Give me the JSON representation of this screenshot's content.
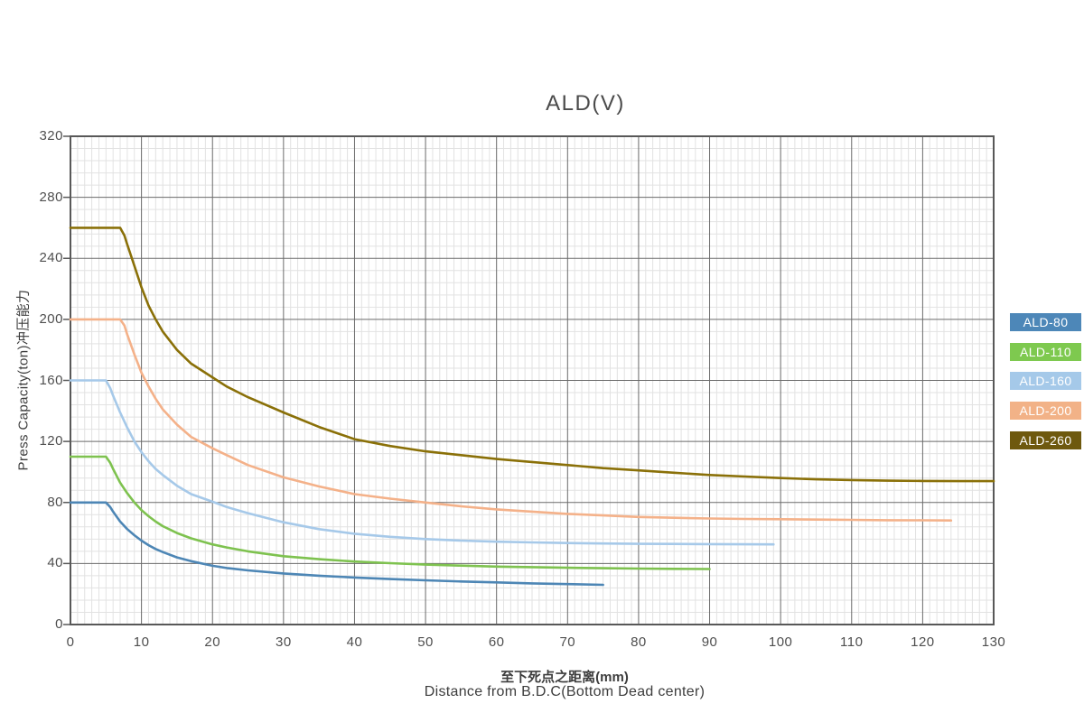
{
  "title": "ALD(V)",
  "axes": {
    "y_title": "Press Capacity(ton)冲压能力",
    "x_title_zh": "至下死点之距离(mm)",
    "x_title_en": "Distance from B.D.C(Bottom Dead center)",
    "x_ticks": [
      "0",
      "10",
      "20",
      "30",
      "40",
      "50",
      "60",
      "70",
      "80",
      "90",
      "100",
      "110",
      "120",
      "130"
    ],
    "y_ticks": [
      "0",
      "40",
      "80",
      "120",
      "160",
      "200",
      "240",
      "280",
      "320"
    ]
  },
  "grid_colors": {
    "minor": "#e2e2e2",
    "major": "#6a6a6a",
    "border": "#585858"
  },
  "chart_data": {
    "type": "line",
    "title": "ALD(V)",
    "xlabel": "至下死点之距离(mm) / Distance from B.D.C(Bottom Dead center)",
    "ylabel": "Press Capacity(ton)冲压能力",
    "xlim": [
      0,
      130
    ],
    "ylim": [
      0,
      320
    ],
    "x_tick_step": 10,
    "y_tick_step": 40,
    "x_minor_step": 1,
    "y_minor_step": 8,
    "grid": "major+minor",
    "legend_position": "right-outside",
    "series": [
      {
        "name": "ALD-80",
        "color": "#4d86b5",
        "chip_color": "#4d87b8",
        "points": [
          [
            0,
            80
          ],
          [
            5,
            80
          ],
          [
            5.6,
            77
          ],
          [
            6,
            74
          ],
          [
            7,
            67.5
          ],
          [
            8,
            62.5
          ],
          [
            9,
            58.5
          ],
          [
            10,
            55
          ],
          [
            11,
            52
          ],
          [
            12,
            49.5
          ],
          [
            13,
            47.5
          ],
          [
            15,
            44
          ],
          [
            17,
            41.5
          ],
          [
            20,
            38.5
          ],
          [
            22,
            37
          ],
          [
            25,
            35.5
          ],
          [
            30,
            33.5
          ],
          [
            35,
            32
          ],
          [
            40,
            30.8
          ],
          [
            45,
            29.8
          ],
          [
            50,
            29
          ],
          [
            55,
            28.2
          ],
          [
            60,
            27.6
          ],
          [
            65,
            27
          ],
          [
            70,
            26.5
          ],
          [
            75,
            26
          ]
        ]
      },
      {
        "name": "ALD-110",
        "color": "#7ec24f",
        "chip_color": "#7ec94f",
        "points": [
          [
            0,
            110
          ],
          [
            5,
            110
          ],
          [
            5.6,
            106
          ],
          [
            6,
            102
          ],
          [
            7,
            93
          ],
          [
            8,
            86
          ],
          [
            9,
            80
          ],
          [
            10,
            75
          ],
          [
            11,
            71
          ],
          [
            12,
            67.5
          ],
          [
            13,
            64.5
          ],
          [
            15,
            60
          ],
          [
            17,
            56.5
          ],
          [
            20,
            52.5
          ],
          [
            22,
            50.5
          ],
          [
            25,
            48
          ],
          [
            30,
            44.8
          ],
          [
            35,
            42.8
          ],
          [
            40,
            41.3
          ],
          [
            45,
            40.2
          ],
          [
            50,
            39.3
          ],
          [
            55,
            38.6
          ],
          [
            60,
            38
          ],
          [
            65,
            37.6
          ],
          [
            70,
            37.2
          ],
          [
            75,
            36.9
          ],
          [
            80,
            36.7
          ],
          [
            85,
            36.5
          ],
          [
            90,
            36.4
          ]
        ]
      },
      {
        "name": "ALD-160",
        "color": "#a6c9e9",
        "chip_color": "#a5c9e9",
        "points": [
          [
            0,
            160
          ],
          [
            5,
            160
          ],
          [
            5.6,
            155
          ],
          [
            6,
            150
          ],
          [
            7,
            139
          ],
          [
            8,
            129
          ],
          [
            9,
            120
          ],
          [
            10,
            113
          ],
          [
            11,
            107
          ],
          [
            12,
            102
          ],
          [
            13,
            98
          ],
          [
            15,
            91
          ],
          [
            17,
            85.5
          ],
          [
            20,
            80.5
          ],
          [
            22,
            77
          ],
          [
            25,
            73
          ],
          [
            30,
            67
          ],
          [
            35,
            62.5
          ],
          [
            40,
            59.5
          ],
          [
            45,
            57.5
          ],
          [
            50,
            56
          ],
          [
            55,
            55
          ],
          [
            60,
            54.3
          ],
          [
            65,
            53.8
          ],
          [
            70,
            53.4
          ],
          [
            75,
            53.1
          ],
          [
            80,
            52.9
          ],
          [
            85,
            52.8
          ],
          [
            90,
            52.7
          ],
          [
            95,
            52.6
          ],
          [
            99,
            52.5
          ]
        ]
      },
      {
        "name": "ALD-200",
        "color": "#f4b189",
        "chip_color": "#f2b287",
        "points": [
          [
            0,
            200
          ],
          [
            7,
            200
          ],
          [
            7.6,
            196
          ],
          [
            8,
            190
          ],
          [
            9,
            177
          ],
          [
            10,
            165
          ],
          [
            11,
            156
          ],
          [
            12,
            148
          ],
          [
            13,
            141
          ],
          [
            15,
            131
          ],
          [
            17,
            123
          ],
          [
            20,
            115.5
          ],
          [
            22,
            111
          ],
          [
            25,
            104.5
          ],
          [
            30,
            96.5
          ],
          [
            35,
            90.5
          ],
          [
            40,
            85.5
          ],
          [
            45,
            82.5
          ],
          [
            50,
            80
          ],
          [
            55,
            77.5
          ],
          [
            60,
            75.5
          ],
          [
            65,
            74
          ],
          [
            70,
            72.5
          ],
          [
            75,
            71.5
          ],
          [
            80,
            70.5
          ],
          [
            85,
            70
          ],
          [
            90,
            69.5
          ],
          [
            95,
            69.2
          ],
          [
            100,
            69
          ],
          [
            105,
            68.8
          ],
          [
            110,
            68.6
          ],
          [
            115,
            68.4
          ],
          [
            120,
            68.3
          ],
          [
            124,
            68.2
          ]
        ]
      },
      {
        "name": "ALD-260",
        "color": "#8a7008",
        "chip_color": "#6e590e",
        "points": [
          [
            0,
            260
          ],
          [
            7,
            260
          ],
          [
            7.6,
            255
          ],
          [
            8,
            249
          ],
          [
            9,
            235
          ],
          [
            10,
            221
          ],
          [
            11,
            209
          ],
          [
            12,
            200
          ],
          [
            13,
            192
          ],
          [
            15,
            180
          ],
          [
            17,
            171
          ],
          [
            20,
            162
          ],
          [
            22,
            156
          ],
          [
            25,
            149
          ],
          [
            30,
            139
          ],
          [
            35,
            129.5
          ],
          [
            40,
            121.5
          ],
          [
            45,
            117
          ],
          [
            50,
            113.5
          ],
          [
            55,
            111
          ],
          [
            60,
            108.5
          ],
          [
            65,
            106.5
          ],
          [
            70,
            104.5
          ],
          [
            75,
            102.5
          ],
          [
            80,
            101
          ],
          [
            85,
            99.5
          ],
          [
            90,
            98
          ],
          [
            95,
            97
          ],
          [
            100,
            96
          ],
          [
            105,
            95.2
          ],
          [
            110,
            94.7
          ],
          [
            115,
            94.3
          ],
          [
            120,
            94.1
          ],
          [
            125,
            94
          ],
          [
            130,
            94
          ]
        ]
      }
    ]
  }
}
